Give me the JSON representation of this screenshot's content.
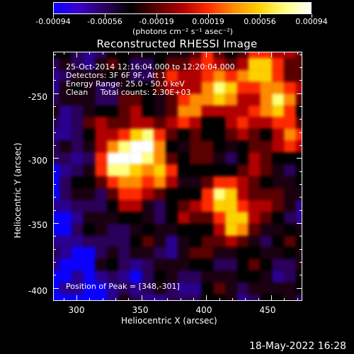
{
  "colorbar": {
    "tick_labels": [
      "-0.00094",
      "-0.00056",
      "-0.00019",
      "0.00019",
      "0.00056",
      "0.00094"
    ],
    "units_label": "(photons cm⁻² s⁻¹ asec⁻²)",
    "colors": [
      "#0b00ff",
      "#3a00c8",
      "#2b005a",
      "#000000",
      "#5a0000",
      "#b20000",
      "#ff2a00",
      "#ff8c00",
      "#ffd000",
      "#ffff80",
      "#ffffff"
    ]
  },
  "plot": {
    "title": "Reconstructed RHESSI Image",
    "annotations": {
      "time_range": "25-Oct-2014 12:16:04.000 to 12:20:04.000",
      "detectors": "Detectors: 3F 6F 9F, Att 1",
      "energy_range": "Energy Range: 25.0 - 50.0 keV",
      "clean_total": "Clean     Total counts: 2.30E+03",
      "peak_position": "Position of Peak = [348,-301]"
    },
    "x_axis": {
      "label": "Heliocentric X (arcsec)",
      "tick_labels": [
        "300",
        "350",
        "400",
        "450"
      ],
      "range": [
        282,
        474
      ]
    },
    "y_axis": {
      "label": "Heliocentric Y (arcsec)",
      "tick_labels": [
        "-250",
        "-300",
        "-350",
        "-400"
      ],
      "range": [
        -410,
        -218
      ]
    }
  },
  "footer": {
    "date": "18-May-2022 16:28"
  }
}
